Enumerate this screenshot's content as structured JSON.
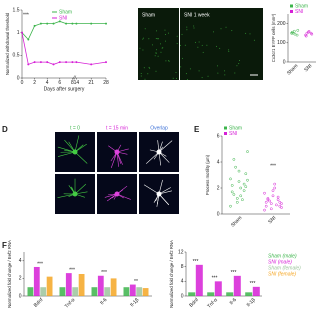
{
  "panels": {
    "top_images": {
      "labels": [
        "Sham",
        "SNI 1 week"
      ]
    },
    "D": {
      "letter": "D",
      "labels": [
        "t = 0",
        "t = 15 min",
        "Overlap"
      ]
    },
    "E": {
      "letter": "E"
    },
    "F": {
      "letter": "F"
    }
  },
  "chart_data": [
    {
      "type": "line",
      "ylabel": "Normalized withdrawal threshold",
      "xlabel": "Days after surgery",
      "x": [
        0,
        1,
        2,
        3,
        4,
        5,
        6,
        7,
        8,
        14,
        21,
        28
      ],
      "xlim": [
        0,
        28
      ],
      "x_break": [
        8,
        14
      ],
      "xticks": [
        0,
        2,
        4,
        6,
        8,
        14,
        21,
        28
      ],
      "ylim": [
        0,
        1.5
      ],
      "yticks": [
        0,
        0.5,
        1,
        1.5
      ],
      "annotation": "***",
      "series": [
        {
          "name": "Sham",
          "color": "#3cb44b",
          "values": [
            1,
            0.85,
            1.15,
            1.2,
            1.2,
            1.2,
            1.25,
            1.2,
            1.2,
            1.2,
            1.2,
            1.2
          ]
        },
        {
          "name": "SNI",
          "color": "#d61fd6",
          "values": [
            1,
            0.3,
            0.35,
            0.35,
            0.35,
            0.3,
            0.35,
            0.35,
            0.35,
            0.35,
            0.3,
            0.35
          ]
        }
      ]
    },
    {
      "type": "strip",
      "ylabel": "Cx3cr1 EYFP cells (mm²)",
      "categories": [
        "Sham",
        "SNI"
      ],
      "ylim": [
        0,
        250
      ],
      "yticks": [
        0,
        100,
        200
      ],
      "series": [
        {
          "name": "Sham",
          "color": "#3cb44b",
          "values": [
            150,
            160,
            140,
            155,
            145,
            165,
            150
          ]
        },
        {
          "name": "SNI",
          "color": "#d61fd6",
          "values": [
            140,
            155,
            150,
            135,
            160,
            145,
            150
          ]
        }
      ]
    },
    {
      "type": "strip",
      "ylabel": "Process motility (µm)",
      "categories": [
        "Sham",
        "SNI"
      ],
      "ylim": [
        0,
        6
      ],
      "yticks": [
        0,
        2,
        4,
        6
      ],
      "annotation": "***",
      "series": [
        {
          "name": "Sham",
          "color": "#3cb44b",
          "values": [
            0.6,
            1.2,
            1.8,
            2.2,
            2.5,
            3.1,
            1.5,
            2.0,
            4.8,
            3.6,
            1.1,
            2.7,
            0.9,
            2.3,
            1.7,
            3.3,
            2.1,
            4.2,
            1.4,
            2.6
          ]
        },
        {
          "name": "SNI",
          "color": "#d61fd6",
          "values": [
            0.3,
            0.8,
            1.1,
            0.6,
            1.4,
            0.9,
            1.2,
            2.3,
            0.5,
            1.0,
            0.7,
            1.6,
            0.4,
            1.3,
            0.9,
            1.8,
            0.6,
            1.1,
            2.0,
            0.8
          ]
        }
      ]
    },
    {
      "type": "bar",
      "ylabel": "Normalized fold change / Eef2 RNA",
      "categories": [
        "Bdnf",
        "Tnf-α",
        "Il-6",
        "Il-1β"
      ],
      "ylim": [
        0,
        5
      ],
      "yticks": [
        0,
        2,
        4
      ],
      "annotations": [
        "***",
        "***",
        "***",
        "**"
      ],
      "series": [
        {
          "name": "Sham (male)",
          "color": "#3cb44b",
          "values": [
            1,
            1,
            1,
            1
          ]
        },
        {
          "name": "SNI (male)",
          "color": "#d61fd6",
          "values": [
            3.3,
            2.6,
            2.3,
            1.3
          ]
        },
        {
          "name": "Sham (female)",
          "color": "#9cc49c",
          "values": [
            1,
            1,
            1,
            1
          ]
        },
        {
          "name": "SNI (female)",
          "color": "#f5a623",
          "values": [
            2.2,
            2.5,
            2.0,
            0.9
          ]
        }
      ]
    },
    {
      "type": "bar",
      "ylabel": "Normalized fold change / Eef2 RNA",
      "categories": [
        "Bdnf",
        "Tnf-α",
        "Il-6",
        "Il-1β"
      ],
      "ylim": [
        0,
        12
      ],
      "yticks": [
        0,
        4,
        8,
        12
      ],
      "annotations": [
        "***",
        "***",
        "***",
        "***"
      ],
      "series": [
        {
          "color": "#3cb44b",
          "values": [
            1,
            1,
            1,
            1
          ]
        },
        {
          "color": "#d61fd6",
          "values": [
            8.5,
            4,
            5.5,
            2.5
          ]
        }
      ]
    }
  ]
}
